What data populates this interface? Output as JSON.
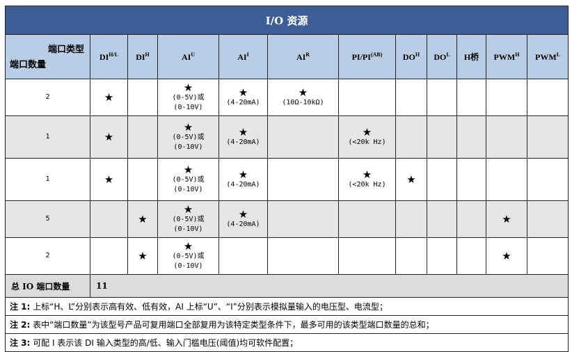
{
  "title": "I/O 资源",
  "corner": {
    "top": "端口类型",
    "bottom": "端口数量"
  },
  "columns": [
    {
      "base": "DI",
      "sup": "H/L"
    },
    {
      "base": "DI",
      "sup": "H"
    },
    {
      "base": "AI",
      "sup": "U"
    },
    {
      "base": "AI",
      "sup": "I"
    },
    {
      "base": "AI",
      "sup": "R"
    },
    {
      "base": "PI/PI",
      "sup": "(AB)"
    },
    {
      "base": "DO",
      "sup": "H"
    },
    {
      "base": "DO",
      "sup": "L"
    },
    {
      "base": "H桥",
      "sup": ""
    },
    {
      "base": "PWM",
      "sup": "H"
    },
    {
      "base": "PWM",
      "sup": "L"
    }
  ],
  "star": "★",
  "rows": [
    {
      "count": "2",
      "cells": [
        "★",
        "",
        "★|(0-5V)或|(0-10V)",
        "★|(4-20mA)",
        "★|(10Ω-10kΩ)",
        "",
        "",
        "",
        "",
        "",
        ""
      ]
    },
    {
      "count": "1",
      "cells": [
        "★",
        "",
        "★|(0-5V)或|(0-10V)",
        "★|(4-20mA)",
        "",
        "★|(<20k Hz)",
        "",
        "",
        "",
        "",
        ""
      ]
    },
    {
      "count": "1",
      "cells": [
        "★",
        "",
        "★|(0-5V)或|(0-10V)",
        "★|(4-20mA)",
        "",
        "★|(<20k Hz)",
        "★",
        "",
        "",
        "",
        ""
      ]
    },
    {
      "count": "5",
      "cells": [
        "",
        "★",
        "★|(0-5V)或|(0-10V)",
        "★|(4-20mA)",
        "",
        "",
        "",
        "",
        "",
        "★",
        ""
      ]
    },
    {
      "count": "2",
      "cells": [
        "",
        "★",
        "★|(0-5V)或|(0-10V)",
        "",
        "",
        "",
        "",
        "",
        "",
        "★",
        ""
      ]
    }
  ],
  "total": {
    "label": "总 IO 端口数量",
    "value": "11"
  },
  "notes": [
    {
      "label": "注 1:",
      "text": " 上标“H、L”分别表示高有效、低有效，AI 上标“U”、“I”分别表示模拟量输入的电压型、电流型；"
    },
    {
      "label": "注 2:",
      "text": " 表中“端口数量”为该型号产品可复用端口全部复用为该特定类型条件下，最多可用的该类型端口数量的总和；"
    },
    {
      "label": "注 3:",
      "text": " 可配 I 表示该 DI 输入类型的高/低、输入门槛电压(阈值)均可软件配置；"
    }
  ],
  "colors": {
    "title_bg": "#3b5e96",
    "header_bg": "#b9cde5",
    "alt_row_bg": "#e6e6e6"
  }
}
